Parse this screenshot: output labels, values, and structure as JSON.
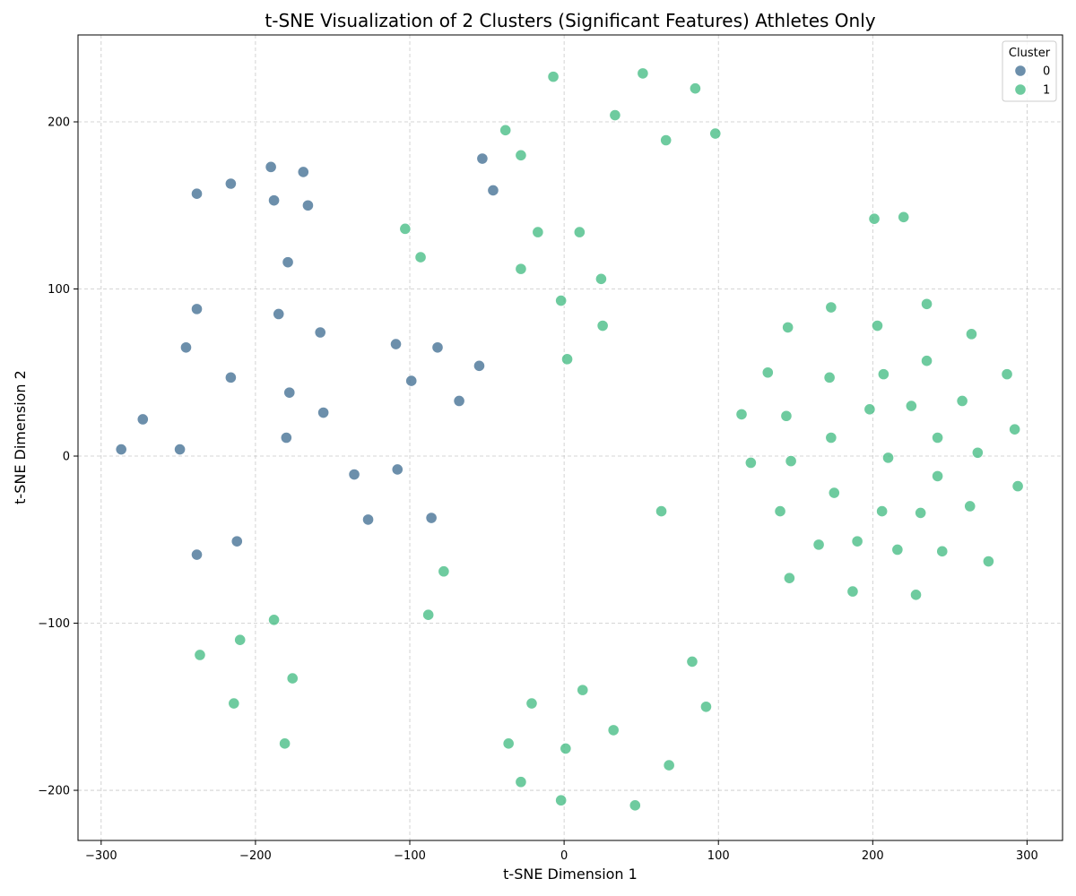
{
  "chart_data": {
    "type": "scatter",
    "title": "t-SNE Visualization of 2 Clusters (Significant Features) Athletes Only",
    "xlabel": "t-SNE Dimension 1",
    "ylabel": "t-SNE Dimension 2",
    "xlim": [
      -315,
      323
    ],
    "ylim": [
      -230,
      252
    ],
    "xticks": [
      "−300",
      "−200",
      "−100",
      "0",
      "100",
      "200",
      "300"
    ],
    "yticks": [
      "−200",
      "−100",
      "0",
      "100",
      "200"
    ],
    "xtick_values": [
      -300,
      -200,
      -100,
      0,
      100,
      200,
      300
    ],
    "ytick_values": [
      -200,
      -100,
      0,
      100,
      200
    ],
    "grid": true,
    "legend": {
      "title": "Cluster",
      "position": "top-right"
    },
    "series": [
      {
        "name": "0",
        "color": "#3b6a8f",
        "points": [
          [
            -190,
            173
          ],
          [
            -169,
            170
          ],
          [
            -216,
            163
          ],
          [
            -238,
            157
          ],
          [
            -188,
            153
          ],
          [
            -166,
            150
          ],
          [
            -53,
            178
          ],
          [
            -46,
            159
          ],
          [
            -179,
            116
          ],
          [
            -238,
            88
          ],
          [
            -185,
            85
          ],
          [
            -158,
            74
          ],
          [
            -245,
            65
          ],
          [
            -109,
            67
          ],
          [
            -82,
            65
          ],
          [
            -216,
            47
          ],
          [
            -99,
            45
          ],
          [
            -55,
            54
          ],
          [
            -178,
            38
          ],
          [
            -68,
            33
          ],
          [
            -156,
            26
          ],
          [
            -273,
            22
          ],
          [
            -180,
            11
          ],
          [
            -287,
            4
          ],
          [
            -249,
            4
          ],
          [
            -136,
            -11
          ],
          [
            -108,
            -8
          ],
          [
            -127,
            -38
          ],
          [
            -86,
            -37
          ],
          [
            -212,
            -51
          ],
          [
            -238,
            -59
          ]
        ]
      },
      {
        "name": "1",
        "color": "#3dba7f",
        "points": [
          [
            -7,
            227
          ],
          [
            51,
            229
          ],
          [
            85,
            220
          ],
          [
            -38,
            195
          ],
          [
            33,
            204
          ],
          [
            -28,
            180
          ],
          [
            66,
            189
          ],
          [
            98,
            193
          ],
          [
            -103,
            136
          ],
          [
            -93,
            119
          ],
          [
            -17,
            134
          ],
          [
            10,
            134
          ],
          [
            -28,
            112
          ],
          [
            24,
            106
          ],
          [
            -2,
            93
          ],
          [
            25,
            78
          ],
          [
            2,
            58
          ],
          [
            201,
            142
          ],
          [
            220,
            143
          ],
          [
            173,
            89
          ],
          [
            235,
            91
          ],
          [
            145,
            77
          ],
          [
            203,
            78
          ],
          [
            264,
            73
          ],
          [
            132,
            50
          ],
          [
            172,
            47
          ],
          [
            207,
            49
          ],
          [
            235,
            57
          ],
          [
            287,
            49
          ],
          [
            115,
            25
          ],
          [
            144,
            24
          ],
          [
            198,
            28
          ],
          [
            225,
            30
          ],
          [
            258,
            33
          ],
          [
            173,
            11
          ],
          [
            242,
            11
          ],
          [
            292,
            16
          ],
          [
            268,
            2
          ],
          [
            121,
            -4
          ],
          [
            147,
            -3
          ],
          [
            210,
            -1
          ],
          [
            242,
            -12
          ],
          [
            294,
            -18
          ],
          [
            175,
            -22
          ],
          [
            63,
            -33
          ],
          [
            140,
            -33
          ],
          [
            206,
            -33
          ],
          [
            231,
            -34
          ],
          [
            263,
            -30
          ],
          [
            165,
            -53
          ],
          [
            190,
            -51
          ],
          [
            216,
            -56
          ],
          [
            245,
            -57
          ],
          [
            275,
            -63
          ],
          [
            146,
            -73
          ],
          [
            187,
            -81
          ],
          [
            228,
            -83
          ],
          [
            -78,
            -69
          ],
          [
            -88,
            -95
          ],
          [
            -188,
            -98
          ],
          [
            -210,
            -110
          ],
          [
            -236,
            -119
          ],
          [
            -176,
            -133
          ],
          [
            -214,
            -148
          ],
          [
            -181,
            -172
          ],
          [
            83,
            -123
          ],
          [
            12,
            -140
          ],
          [
            -21,
            -148
          ],
          [
            92,
            -150
          ],
          [
            32,
            -164
          ],
          [
            -36,
            -172
          ],
          [
            1,
            -175
          ],
          [
            68,
            -185
          ],
          [
            -28,
            -195
          ],
          [
            -2,
            -206
          ],
          [
            46,
            -209
          ]
        ]
      }
    ]
  }
}
